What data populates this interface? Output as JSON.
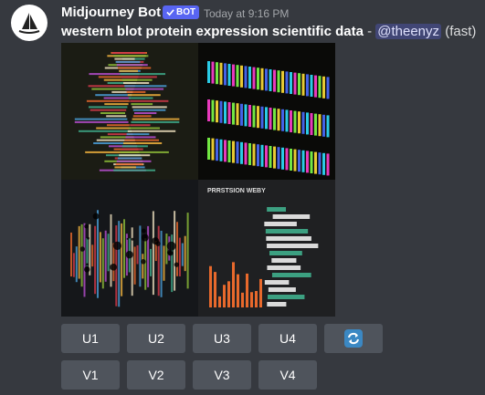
{
  "header": {
    "username": "Midjourney Bot",
    "badge": "BOT",
    "timestamp": "Today at 9:16 PM"
  },
  "message": {
    "prompt": "western blot protein expression scientific data",
    "separator": " - ",
    "mention": "@theenyz",
    "speed": "(fast)"
  },
  "image": {
    "text": "PRRSTSION WEBY"
  },
  "buttons": {
    "upscale": [
      "U1",
      "U2",
      "U3",
      "U4"
    ],
    "variation": [
      "V1",
      "V2",
      "V3",
      "V4"
    ]
  }
}
